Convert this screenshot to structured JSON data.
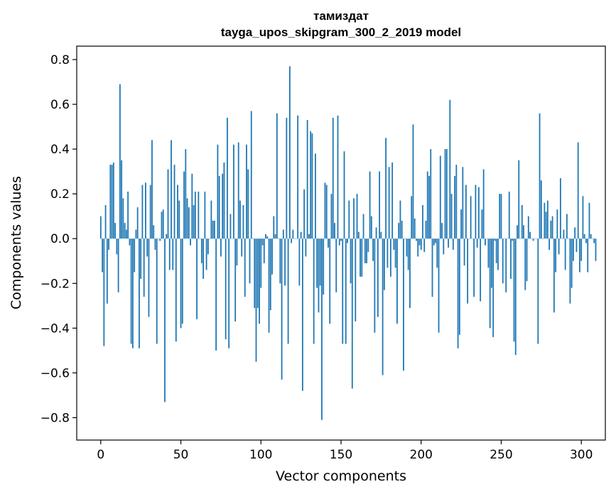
{
  "chart_data": {
    "type": "bar",
    "title": "тамиздат",
    "subtitle": "tayga_upos_skipgram_300_2_2019 model",
    "xlabel": "Vector components",
    "ylabel": "Components values",
    "xlim": [
      -15,
      315
    ],
    "ylim": [
      -0.9,
      0.86
    ],
    "xticks": [
      0,
      50,
      100,
      150,
      200,
      250,
      300
    ],
    "xtick_labels": [
      "0",
      "50",
      "100",
      "150",
      "200",
      "250",
      "300"
    ],
    "yticks": [
      -0.8,
      -0.6,
      -0.4,
      -0.2,
      0.0,
      0.2,
      0.4,
      0.6,
      0.8
    ],
    "ytick_labels": [
      "−0.8",
      "−0.6",
      "−0.4",
      "−0.2",
      "0.0",
      "0.2",
      "0.4",
      "0.6",
      "0.8"
    ],
    "grid": false,
    "bar_color": "#1f77b4",
    "values": [
      0.1,
      -0.15,
      -0.48,
      0.15,
      -0.29,
      -0.05,
      0.33,
      0.33,
      0.34,
      0.07,
      -0.07,
      -0.24,
      0.69,
      0.35,
      0.18,
      0.07,
      0.04,
      0.21,
      -0.03,
      -0.47,
      -0.49,
      -0.15,
      0.04,
      0.14,
      -0.49,
      -0.18,
      0.24,
      -0.26,
      0.25,
      -0.08,
      -0.35,
      0.24,
      0.44,
      0.06,
      -0.05,
      -0.47,
      0.0,
      -0.01,
      0.12,
      0.13,
      -0.73,
      0.02,
      0.31,
      -0.14,
      0.44,
      -0.14,
      0.33,
      -0.46,
      0.24,
      0.17,
      -0.4,
      -0.38,
      0.3,
      0.4,
      0.18,
      0.14,
      -0.03,
      0.29,
      0.15,
      0.21,
      -0.36,
      0.21,
      0.0,
      -0.11,
      -0.18,
      0.21,
      -0.14,
      -0.07,
      0.0,
      0.17,
      0.08,
      0.08,
      -0.5,
      0.42,
      0.28,
      -0.08,
      0.29,
      0.34,
      -0.45,
      0.54,
      -0.49,
      0.11,
      0.0,
      0.42,
      -0.37,
      -0.12,
      0.43,
      0.17,
      -0.08,
      0.15,
      -0.26,
      0.42,
      0.31,
      -0.2,
      0.57,
      0.0,
      -0.31,
      -0.55,
      -0.31,
      -0.38,
      -0.22,
      -0.03,
      -0.11,
      0.02,
      0.01,
      -0.42,
      -0.32,
      -0.16,
      0.1,
      0.02,
      0.56,
      0.0,
      -0.2,
      -0.63,
      0.04,
      -0.21,
      0.54,
      -0.47,
      0.77,
      -0.02,
      0.04,
      0.0,
      0.0,
      0.55,
      -0.21,
      0.03,
      -0.68,
      0.22,
      -0.08,
      0.53,
      0.02,
      0.48,
      0.47,
      -0.47,
      0.38,
      -0.22,
      -0.33,
      -0.21,
      -0.81,
      -0.25,
      0.25,
      0.24,
      -0.04,
      -0.38,
      0.2,
      0.54,
      0.07,
      -0.24,
      0.55,
      -0.03,
      -0.01,
      -0.47,
      0.39,
      -0.47,
      -0.02,
      0.17,
      -0.2,
      -0.67,
      0.18,
      -0.37,
      0.2,
      0.03,
      -0.17,
      -0.17,
      0.11,
      -0.11,
      -0.11,
      -0.06,
      0.3,
      0.1,
      -0.1,
      -0.42,
      0.05,
      -0.35,
      0.3,
      0.03,
      -0.61,
      -0.23,
      0.45,
      -0.13,
      0.32,
      -0.17,
      0.34,
      -0.05,
      -0.13,
      -0.38,
      0.07,
      0.17,
      0.08,
      -0.59,
      0.0,
      -0.08,
      -0.14,
      -0.31,
      0.19,
      0.51,
      0.09,
      -0.01,
      -0.08,
      -0.03,
      -0.05,
      0.15,
      -0.06,
      0.08,
      0.3,
      0.28,
      0.4,
      -0.26,
      -0.03,
      -0.02,
      -0.13,
      -0.42,
      0.37,
      0.07,
      -0.07,
      0.4,
      0.4,
      -0.04,
      0.62,
      0.2,
      -0.05,
      0.28,
      0.33,
      -0.49,
      -0.43,
      0.13,
      0.32,
      -0.12,
      0.24,
      -0.29,
      0.0,
      0.19,
      0.0,
      -0.26,
      0.24,
      -0.04,
      0.23,
      -0.28,
      0.13,
      0.31,
      -0.03,
      0.0,
      -0.13,
      -0.4,
      -0.22,
      -0.44,
      -0.01,
      -0.11,
      -0.14,
      0.2,
      0.2,
      -0.2,
      0.0,
      -0.24,
      0.0,
      0.21,
      -0.18,
      -0.01,
      -0.46,
      -0.52,
      0.06,
      0.35,
      0.0,
      0.15,
      0.06,
      -0.23,
      -0.19,
      0.1,
      0.03,
      0.0,
      -0.01,
      0.0,
      0.0,
      -0.47,
      0.56,
      0.26,
      0.0,
      0.16,
      0.12,
      0.17,
      -0.05,
      0.08,
      0.1,
      -0.33,
      -0.15,
      0.13,
      -0.07,
      0.27,
      0.0,
      0.04,
      -0.14,
      0.11,
      0.0,
      -0.29,
      -0.22,
      -0.1,
      0.05,
      -0.06,
      0.43,
      -0.15,
      -0.1,
      0.19,
      0.02,
      -0.02,
      -0.15,
      0.16,
      0.02,
      0.0,
      -0.02,
      -0.1
    ]
  }
}
